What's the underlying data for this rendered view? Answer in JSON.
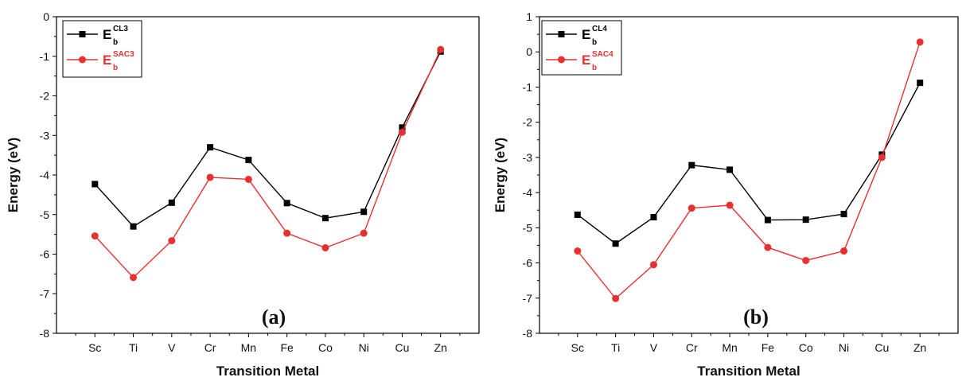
{
  "chart_data": [
    {
      "type": "line",
      "panel_label": "(a)",
      "xlabel": "Transition Metal",
      "ylabel": "Energy (eV)",
      "categories": [
        "Sc",
        "Ti",
        "V",
        "Cr",
        "Mn",
        "Fe",
        "Co",
        "Ni",
        "Cu",
        "Zn"
      ],
      "ylim": [
        -8,
        0
      ],
      "yticks": [
        0,
        -1,
        -2,
        -3,
        -4,
        -5,
        -6,
        -7,
        -8
      ],
      "legend_position": "top-left",
      "series": [
        {
          "name": "E_b^CL3",
          "legend_main": "E",
          "legend_sub": "b",
          "legend_sup": "CL3",
          "color": "#000000",
          "marker": "square",
          "values": [
            -4.23,
            -5.3,
            -4.7,
            -3.3,
            -3.62,
            -4.71,
            -5.09,
            -4.93,
            -2.8,
            -0.88
          ]
        },
        {
          "name": "E_b^SAC3",
          "legend_main": "E",
          "legend_sub": "b",
          "legend_sup": "SAC3",
          "color": "#e8312f",
          "marker": "circle",
          "values": [
            -5.54,
            -6.59,
            -5.66,
            -4.06,
            -4.11,
            -5.47,
            -5.84,
            -5.47,
            -2.92,
            -0.83
          ]
        }
      ]
    },
    {
      "type": "line",
      "panel_label": "(b)",
      "xlabel": "Transition Metal",
      "ylabel": "Energy (eV)",
      "categories": [
        "Sc",
        "Ti",
        "V",
        "Cr",
        "Mn",
        "Fe",
        "Co",
        "Ni",
        "Cu",
        "Zn"
      ],
      "ylim": [
        -8,
        1
      ],
      "yticks": [
        1,
        0,
        -1,
        -2,
        -3,
        -4,
        -5,
        -6,
        -7,
        -8
      ],
      "legend_position": "top-left",
      "series": [
        {
          "name": "E_b^CL4",
          "legend_main": "E",
          "legend_sub": "b",
          "legend_sup": "CL4",
          "color": "#000000",
          "marker": "square",
          "values": [
            -4.63,
            -5.45,
            -4.7,
            -3.22,
            -3.35,
            -4.78,
            -4.77,
            -4.61,
            -2.92,
            -0.88
          ]
        },
        {
          "name": "E_b^SAC4",
          "legend_main": "E",
          "legend_sub": "b",
          "legend_sup": "SAC4",
          "color": "#e8312f",
          "marker": "circle",
          "values": [
            -5.66,
            -7.01,
            -6.05,
            -4.44,
            -4.36,
            -5.56,
            -5.93,
            -5.66,
            -3.0,
            0.28
          ]
        }
      ]
    }
  ]
}
